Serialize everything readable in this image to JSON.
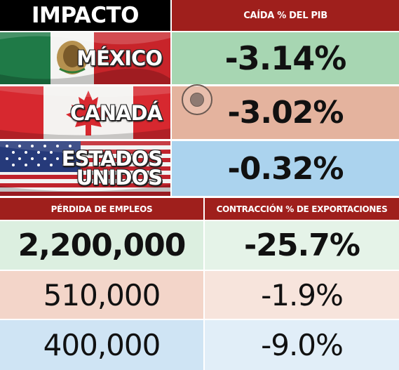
{
  "title": "IMPACTO",
  "headers": {
    "pib": "CAÍDA % DEL PIB",
    "empleos": "PÉRDIDA DE EMPLEOS",
    "exportaciones": "CONTRACCIÓN % DE EXPORTACIONES"
  },
  "countries": [
    {
      "name": "MÉXICO",
      "pib": "-3.14%",
      "empleos": "2,200,000",
      "exportaciones": "-25.7%"
    },
    {
      "name": "CANADÁ",
      "pib": "-3.02%",
      "empleos": "510,000",
      "exportaciones": "-1.9%"
    },
    {
      "name_line1": "ESTADOS",
      "name_line2": "UNIDOS",
      "pib": "-0.32%",
      "empleos": "400,000",
      "exportaciones": "-9.0%"
    }
  ],
  "icons": {
    "flags": [
      "mexico-flag-icon",
      "canada-flag-icon",
      "usa-flag-icon"
    ],
    "decoration": "circle-mark-icon"
  },
  "colors": {
    "header_red": "#9f1f1c",
    "title_black": "#000000",
    "mexico_green": "#a7d6b2",
    "canada_salmon": "#e4b39e",
    "usa_blue": "#abd3ee"
  }
}
